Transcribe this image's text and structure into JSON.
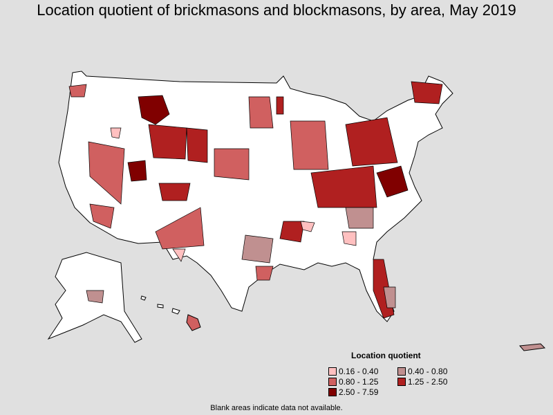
{
  "title": "Location quotient of brickmasons and blockmasons, by area, May 2019",
  "legend": {
    "title": "Location quotient",
    "items": [
      {
        "label": "0.16 - 0.40",
        "color": "#ffc0c0"
      },
      {
        "label": "0.40 - 0.80",
        "color": "#c09090"
      },
      {
        "label": "0.80 - 1.25",
        "color": "#d06060"
      },
      {
        "label": "1.25 - 2.50",
        "color": "#b02020"
      },
      {
        "label": "2.50 - 7.59",
        "color": "#800000"
      }
    ]
  },
  "note": "Blank areas indicate data not available.",
  "colors": {
    "background": "#e0e0e0",
    "blank": "#ffffff",
    "border": "#000000"
  }
}
